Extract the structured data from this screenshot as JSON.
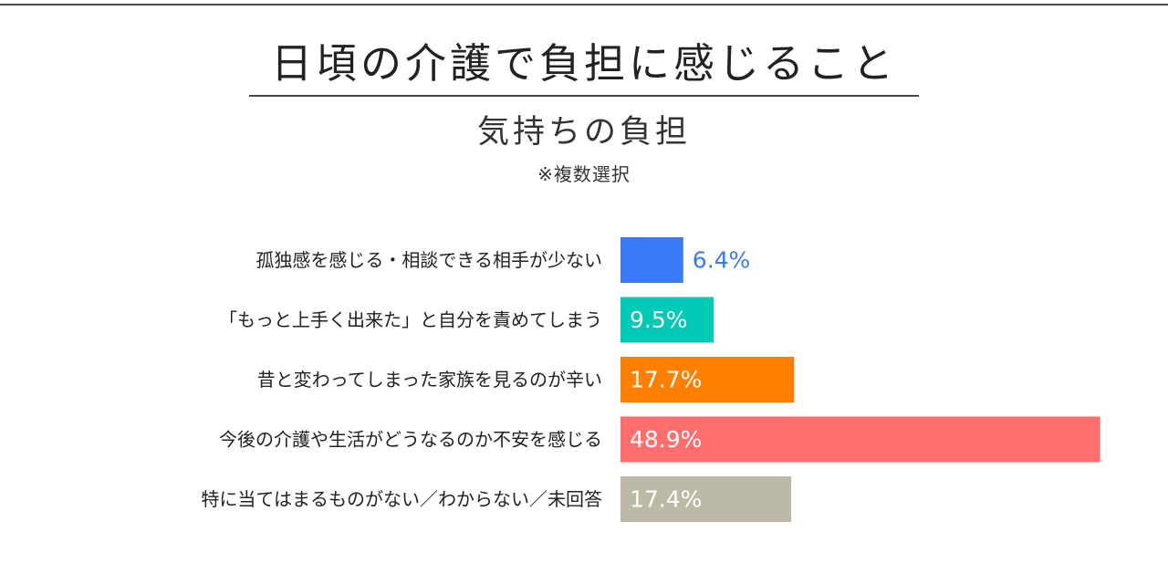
{
  "title": "日頃の介護で負担に感じること",
  "subtitle": "気持ちの負担",
  "note": "※複数選択",
  "chart_data": {
    "type": "bar",
    "orientation": "horizontal",
    "categories": [
      "孤独感を感じる・相談できる相手が少ない",
      "「もっと上手く出来た」と自分を責めてしまう",
      "昔と変わってしまった家族を見るのが辛い",
      "今後の介護や生活がどうなるのか不安を感じる",
      "特に当てはまるものがない／わからない／未回答"
    ],
    "values": [
      6.4,
      9.5,
      17.7,
      48.9,
      17.4
    ],
    "value_labels": [
      "6.4%",
      "9.5%",
      "17.7%",
      "48.9%",
      "17.4%"
    ],
    "colors": [
      "#3a7af7",
      "#00c9b5",
      "#ff8000",
      "#ff6e6e",
      "#bcbaa6"
    ],
    "xlim": [
      0,
      50
    ],
    "grid": false,
    "legend": "none"
  }
}
